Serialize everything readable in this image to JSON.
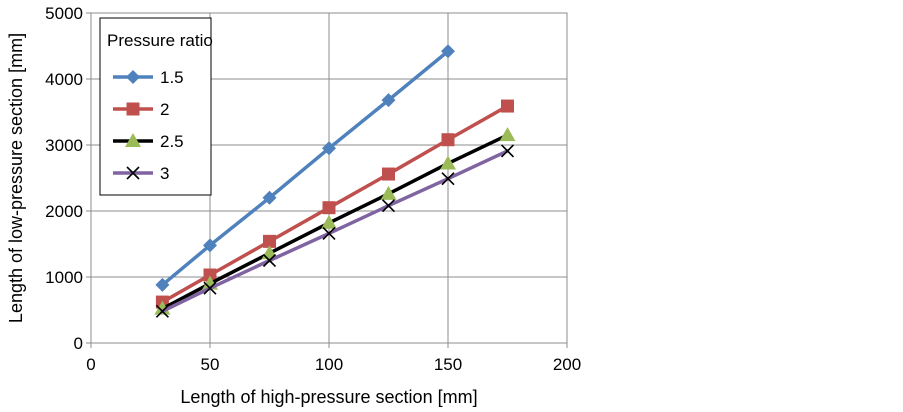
{
  "chart_data": {
    "type": "line",
    "title": "",
    "xlabel": "Length of high-pressure section [mm]",
    "ylabel": "Length of low-pressure section [mm]",
    "xlim": [
      0,
      200
    ],
    "ylim": [
      0,
      5000
    ],
    "xticks": [
      0,
      50,
      100,
      150,
      200
    ],
    "yticks": [
      0,
      1000,
      2000,
      3000,
      4000,
      5000
    ],
    "xtick_labels": [
      "0",
      "50",
      "100",
      "150",
      "200"
    ],
    "ytick_labels": [
      "0",
      "1000",
      "2000",
      "3000",
      "4000",
      "5000"
    ],
    "grid": true,
    "legend": {
      "title": "Pressure ratio",
      "placement": "top-left"
    },
    "series": [
      {
        "name": "1.5",
        "color": "#4F81BD",
        "marker": "diamond",
        "x": [
          30,
          50,
          75,
          100,
          125,
          150
        ],
        "y": [
          880,
          1480,
          2200,
          2950,
          3680,
          4420
        ]
      },
      {
        "name": "2",
        "color": "#C0504D",
        "marker": "square",
        "x": [
          30,
          50,
          75,
          100,
          125,
          150,
          175
        ],
        "y": [
          620,
          1030,
          1540,
          2050,
          2560,
          3080,
          3590
        ]
      },
      {
        "name": "2.5",
        "color": "#000000",
        "marker_color": "#9BBB59",
        "marker": "triangle",
        "x": [
          30,
          50,
          75,
          100,
          125,
          150,
          175
        ],
        "y": [
          520,
          900,
          1360,
          1820,
          2260,
          2720,
          3150
        ]
      },
      {
        "name": "3",
        "color": "#8064A2",
        "marker_color": "#000000",
        "marker": "x",
        "x": [
          30,
          50,
          75,
          100,
          125,
          150,
          175
        ],
        "y": [
          480,
          830,
          1250,
          1660,
          2080,
          2490,
          2910
        ]
      }
    ]
  }
}
